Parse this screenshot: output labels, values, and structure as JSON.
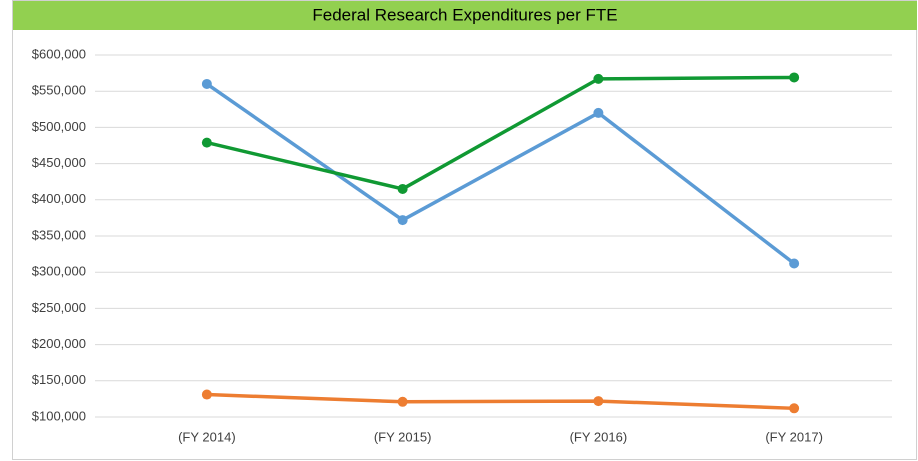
{
  "chart_data": {
    "type": "line",
    "title": "Federal Research Expenditures per FTE",
    "categories": [
      "(FY 2014)",
      "(FY 2015)",
      "(FY 2016)",
      "(FY 2017)"
    ],
    "series": [
      {
        "color": "#5b9bd5",
        "values": [
          560000,
          372000,
          520000,
          312000
        ]
      },
      {
        "color": "#ed7d31",
        "values": [
          131000,
          121000,
          122000,
          112000
        ]
      },
      {
        "color": "#109933",
        "values": [
          479000,
          415000,
          567000,
          569000
        ]
      }
    ],
    "ylim": [
      100000,
      600000
    ],
    "yticks": [
      {
        "value": 100000,
        "label": "$100,000"
      },
      {
        "value": 150000,
        "label": "$150,000"
      },
      {
        "value": 200000,
        "label": "$200,000"
      },
      {
        "value": 250000,
        "label": "$250,000"
      },
      {
        "value": 300000,
        "label": "$300,000"
      },
      {
        "value": 350000,
        "label": "$350,000"
      },
      {
        "value": 400000,
        "label": "$400,000"
      },
      {
        "value": 450000,
        "label": "$450,000"
      },
      {
        "value": 500000,
        "label": "$500,000"
      },
      {
        "value": 550000,
        "label": "$550,000"
      },
      {
        "value": 600000,
        "label": "$600,000"
      }
    ],
    "grid": true
  }
}
